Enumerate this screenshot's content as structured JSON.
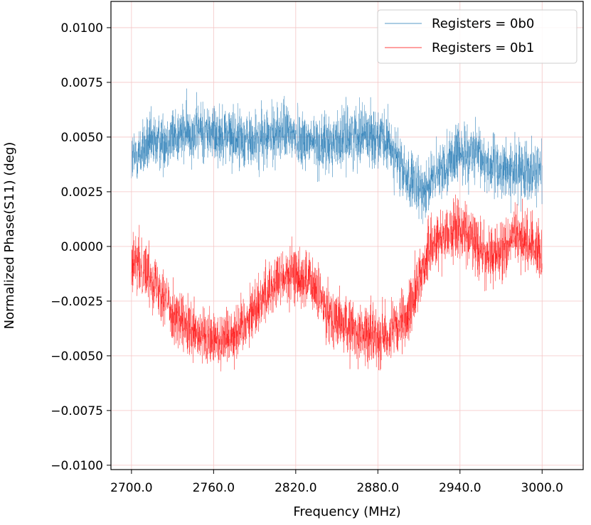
{
  "chart_data": {
    "type": "line",
    "xlabel": "Frequency (MHz)",
    "ylabel": "Normalized Phase(S11) (deg)",
    "xlim": [
      2685,
      3030
    ],
    "ylim": [
      -0.0102,
      0.0112
    ],
    "grid": true,
    "legend_position": "top-right",
    "x_ticks": [
      {
        "value": 2700,
        "label": "2700.0"
      },
      {
        "value": 2760,
        "label": "2760.0"
      },
      {
        "value": 2820,
        "label": "2820.0"
      },
      {
        "value": 2880,
        "label": "2880.0"
      },
      {
        "value": 2940,
        "label": "2940.0"
      },
      {
        "value": 3000,
        "label": "3000.0"
      }
    ],
    "y_ticks": [
      {
        "value": 0.01,
        "label": "0.0100"
      },
      {
        "value": 0.0075,
        "label": "0.0075"
      },
      {
        "value": 0.005,
        "label": "0.0050"
      },
      {
        "value": 0.0025,
        "label": "0.0025"
      },
      {
        "value": 0.0,
        "label": "0.0000"
      },
      {
        "value": -0.0025,
        "label": "−0.0025"
      },
      {
        "value": -0.005,
        "label": "−0.0050"
      },
      {
        "value": -0.0075,
        "label": "−0.0075"
      },
      {
        "value": -0.01,
        "label": "−0.0100"
      }
    ],
    "series": [
      {
        "name": "Registers = 0b0",
        "color": "#1f77b4",
        "x": [
          2700,
          2710,
          2720,
          2730,
          2740,
          2750,
          2760,
          2770,
          2780,
          2790,
          2800,
          2810,
          2820,
          2830,
          2840,
          2850,
          2860,
          2870,
          2880,
          2890,
          2900,
          2910,
          2920,
          2930,
          2940,
          2950,
          2960,
          2970,
          2980,
          2990,
          3000
        ],
        "y": [
          0.004,
          0.0045,
          0.0048,
          0.005,
          0.0052,
          0.0053,
          0.0052,
          0.0051,
          0.0049,
          0.0048,
          0.005,
          0.0053,
          0.0051,
          0.0048,
          0.0046,
          0.0048,
          0.0051,
          0.0052,
          0.005,
          0.0045,
          0.0032,
          0.0025,
          0.003,
          0.0038,
          0.0043,
          0.0042,
          0.0038,
          0.0035,
          0.0034,
          0.0036,
          0.0035
        ],
        "noise": 0.0013
      },
      {
        "name": "Registers = 0b1",
        "color": "#ff0000",
        "x": [
          2700,
          2710,
          2720,
          2730,
          2740,
          2750,
          2760,
          2770,
          2780,
          2790,
          2800,
          2810,
          2820,
          2830,
          2840,
          2850,
          2860,
          2870,
          2880,
          2890,
          2900,
          2910,
          2920,
          2930,
          2940,
          2950,
          2960,
          2970,
          2980,
          2990,
          3000
        ],
        "y": [
          -0.0008,
          -0.001,
          -0.0018,
          -0.003,
          -0.0038,
          -0.0042,
          -0.0043,
          -0.0041,
          -0.0037,
          -0.0028,
          -0.002,
          -0.0015,
          -0.0013,
          -0.0016,
          -0.0026,
          -0.0034,
          -0.0038,
          -0.004,
          -0.0041,
          -0.004,
          -0.0035,
          -0.0015,
          0.0002,
          0.0006,
          0.0008,
          0.0003,
          -0.0005,
          -0.0003,
          0.0005,
          0.0002,
          -0.0002
        ],
        "noise": 0.0013
      }
    ]
  }
}
